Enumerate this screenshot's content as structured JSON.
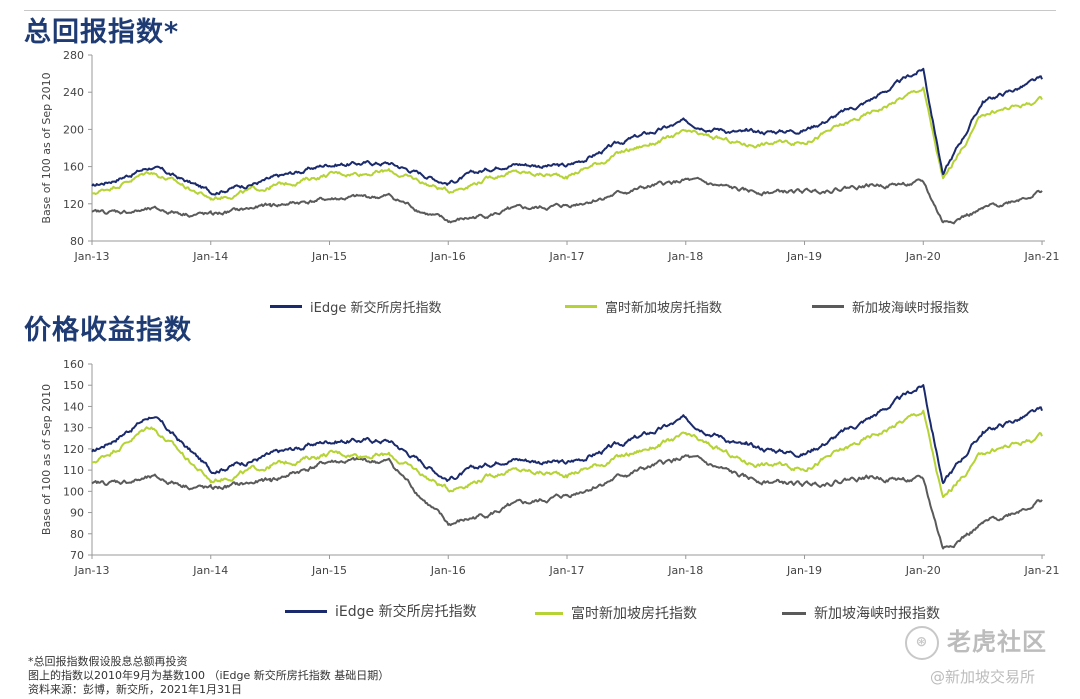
{
  "titles": {
    "total_return": "总回报指数*",
    "price_return": "价格收益指数"
  },
  "legend": [
    {
      "name": "iEdge 新交所房托指数",
      "color": "#1a2a6c"
    },
    {
      "name": "富时新加坡房托指数",
      "color": "#b5d334"
    },
    {
      "name": "新加坡海峡时报指数",
      "color": "#5a5a5a"
    }
  ],
  "footnotes": {
    "line1": "*总回报指数假设股息总额再投资",
    "line2": "图上的指数以2010年9月为基数100 （iEdge 新交所房托指数 基础日期）",
    "line3": "资料来源：彭博，新交所，2021年1月31日"
  },
  "watermark": {
    "main": "老虎社区",
    "handle": "@新加坡交易所"
  },
  "chart_data": [
    {
      "type": "line",
      "title": "总回报指数*",
      "ylabel": "Base of 100 as of Sep 2010",
      "xlabel": "",
      "ylim": [
        80,
        280
      ],
      "yticks": [
        80,
        120,
        160,
        200,
        240,
        280
      ],
      "x": [
        "Jan-13",
        "Jul-13",
        "Jan-14",
        "Jul-14",
        "Jan-15",
        "Jul-15",
        "Jan-16",
        "Jul-16",
        "Jan-17",
        "Jul-17",
        "Jan-18",
        "Jul-18",
        "Jan-19",
        "Jul-19",
        "Jan-20",
        "Mar-20",
        "Jul-20",
        "Jan-21"
      ],
      "xticks": [
        "Jan-13",
        "Jan-14",
        "Jan-15",
        "Jan-16",
        "Jan-17",
        "Jan-18",
        "Jan-19",
        "Jan-20",
        "Jan-21"
      ],
      "series": [
        {
          "name": "iEdge 新交所房托指数",
          "values": [
            138,
            160,
            133,
            146,
            163,
            164,
            143,
            164,
            160,
            188,
            208,
            196,
            200,
            228,
            265,
            152,
            230,
            254
          ]
        },
        {
          "name": "富时新加坡房托指数",
          "values": [
            130,
            155,
            126,
            138,
            152,
            155,
            134,
            154,
            150,
            177,
            196,
            184,
            187,
            214,
            245,
            145,
            216,
            232
          ]
        },
        {
          "name": "新加坡海峡时报指数",
          "values": [
            110,
            113,
            108,
            118,
            125,
            128,
            100,
            112,
            118,
            133,
            145,
            133,
            133,
            140,
            142,
            100,
            113,
            134
          ]
        }
      ],
      "grid": false,
      "legend_position": "bottom"
    },
    {
      "type": "line",
      "title": "价格收益指数",
      "ylabel": "Base of 100 as of Sep 2010",
      "xlabel": "",
      "ylim": [
        70,
        160
      ],
      "yticks": [
        70,
        80,
        90,
        100,
        110,
        120,
        130,
        140,
        150,
        160
      ],
      "x": [
        "Jan-13",
        "Jul-13",
        "Jan-14",
        "Jul-14",
        "Jan-15",
        "Jul-15",
        "Jan-16",
        "Jul-16",
        "Jan-17",
        "Jul-17",
        "Jan-18",
        "Jul-18",
        "Jan-19",
        "Jul-19",
        "Jan-20",
        "Mar-20",
        "Jul-20",
        "Jan-21"
      ],
      "xticks": [
        "Jan-13",
        "Jan-14",
        "Jan-15",
        "Jan-16",
        "Jan-17",
        "Jan-18",
        "Jan-19",
        "Jan-20",
        "Jan-21"
      ],
      "series": [
        {
          "name": "iEdge 新交所房托指数",
          "values": [
            118,
            136,
            110,
            117,
            124,
            124,
            106,
            116,
            113,
            123,
            134,
            121,
            118,
            133,
            150,
            104,
            128,
            138
          ]
        },
        {
          "name": "富时新加坡房托指数",
          "values": [
            113,
            131,
            105,
            112,
            118,
            117,
            101,
            110,
            108,
            117,
            126,
            114,
            111,
            124,
            138,
            96,
            118,
            126
          ]
        },
        {
          "name": "新加坡海峡时报指数",
          "values": [
            103,
            106,
            101,
            105,
            114,
            114,
            84,
            92,
            98,
            108,
            116,
            106,
            103,
            107,
            105,
            73,
            84,
            96
          ]
        }
      ],
      "grid": false,
      "legend_position": "bottom"
    }
  ]
}
